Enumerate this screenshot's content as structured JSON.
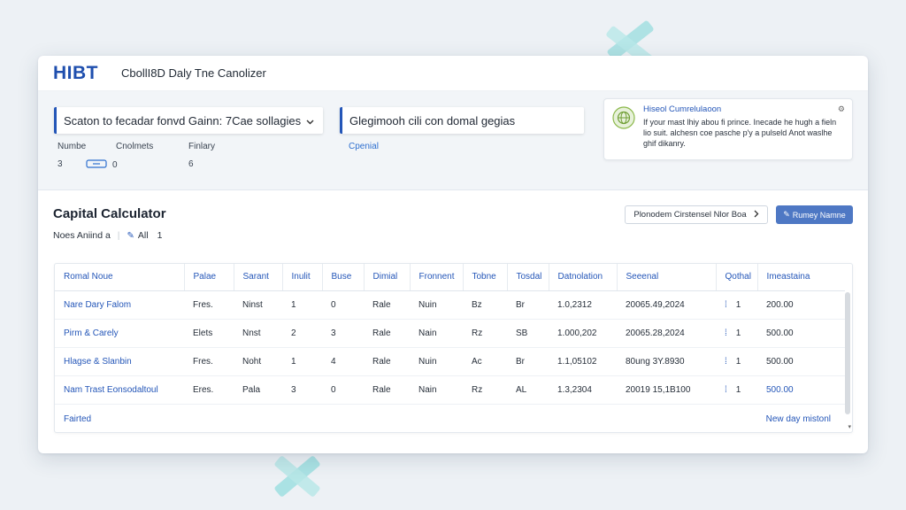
{
  "app": {
    "logo": "HIBT",
    "title": "CbollI8D Daly Tne Canolizer"
  },
  "selector": {
    "label": "Scaton to fecadar fonvd Gainn: 7Cae sollagies",
    "chevron_icon": "chevron-down-icon",
    "meta": [
      {
        "label": "Numbe",
        "value": "3"
      },
      {
        "label": "Cnolmets",
        "value": "0"
      },
      {
        "label": "Finlary",
        "value": "6"
      }
    ]
  },
  "goal": {
    "label": "Glegimooh cili con domal gegias",
    "link": "Cpenial"
  },
  "notice": {
    "title": "Hiseol Cumrelulaoon",
    "body": "If your mast lhiy abou fi prince. Inecade he hugh a fieln lio suit. alchesn coe pasche p'y a pulseld Anot waslhe ghif dikanry.",
    "icon": "globe-icon",
    "settings_icon": "settings-icon"
  },
  "calculator": {
    "title": "Capital Calculator",
    "sub_label": "Noes Aniind a",
    "sub_value": "All",
    "sub_count": "1",
    "outline_button": "Plonodem Cirstensel Nlor Boa",
    "primary_button": "Rumey Namne"
  },
  "table": {
    "headers": [
      "Romal Noue",
      "Palae",
      "Sarant",
      "Inulit",
      "Buse",
      "Dimial",
      "Fronnent",
      "Tobne",
      "Tosdal",
      "Datnolation",
      "Seeenal",
      "Qothal",
      "Imeastaina"
    ],
    "rows": [
      [
        "Nare Dary Falom",
        "Fres.",
        "Ninst",
        "1",
        "0",
        "Rale",
        "Nuin",
        "Bz",
        "Br",
        "1.0,2312",
        "20065.49,2024",
        "1",
        "200.00"
      ],
      [
        "Pirm & Carely",
        "Elets",
        "Nnst",
        "2",
        "3",
        "Rale",
        "Nain",
        "Rz",
        "SB",
        "1.000,202",
        "20065.28,2024",
        "1",
        "500.00"
      ],
      [
        "Hlagse & Slanbin",
        "Fres.",
        "Noht",
        "1",
        "4",
        "Rale",
        "Nuin",
        "Ac",
        "Br",
        "1.1,05102",
        "80ung 3Y.8930",
        "1",
        "500.00"
      ],
      [
        "Nam Trast Eonsodaltoul",
        "Eres.",
        "Pala",
        "3",
        "0",
        "Rale",
        "Nain",
        "Rz",
        "AL",
        "1.3,2304",
        "20019 15,1B100",
        "1",
        "500.00"
      ]
    ],
    "footer_left": "Fairted",
    "footer_right": "New day mistonl"
  }
}
